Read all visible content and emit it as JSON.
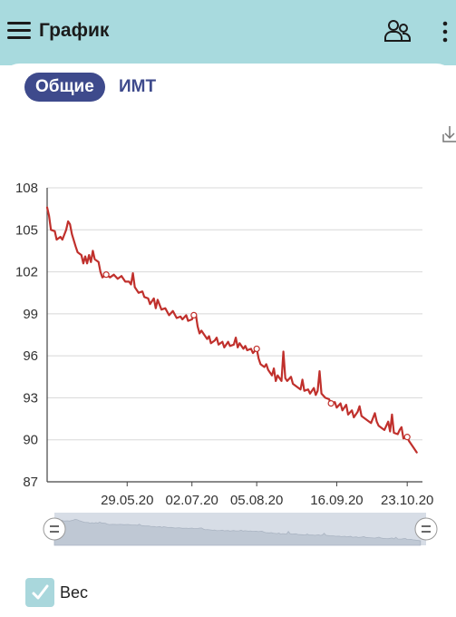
{
  "appbar": {
    "title": "График",
    "menu_icon": "hamburger-menu-icon",
    "profiles_icon": "two-users-icon",
    "more_icon": "vertical-dots-icon"
  },
  "tabs": [
    {
      "label": "Общие",
      "selected": true
    },
    {
      "label": "ИМТ",
      "selected": false
    }
  ],
  "download_icon": "download-icon",
  "colors": {
    "appbar": "#a8dade",
    "accent": "#3e4a8c",
    "series": "#c0302c",
    "checkbox": "#a9d7dc"
  },
  "chart_data": {
    "type": "line",
    "title": "",
    "xlabel": "",
    "ylabel": "",
    "grid": true,
    "ylim": [
      87,
      108
    ],
    "yticks": [
      "108",
      "105",
      "102",
      "99",
      "96",
      "93",
      "90",
      "87"
    ],
    "xticks": [
      "29.05.20",
      "02.07.20",
      "05.08.20",
      "16.09.20",
      "23.10.20"
    ],
    "xlim": [
      "2020-04-17",
      "2020-10-31"
    ],
    "series": [
      {
        "name": "Вес",
        "color": "#c0302c",
        "points": [
          [
            "2020-04-17",
            106.6
          ],
          [
            "2020-04-18",
            106.0
          ],
          [
            "2020-04-19",
            105.0
          ],
          [
            "2020-04-21",
            104.9
          ],
          [
            "2020-04-22",
            104.3
          ],
          [
            "2020-04-24",
            104.5
          ],
          [
            "2020-04-25",
            104.3
          ],
          [
            "2020-04-27",
            105.0
          ],
          [
            "2020-04-28",
            105.6
          ],
          [
            "2020-04-29",
            105.4
          ],
          [
            "2020-04-30",
            104.7
          ],
          [
            "2020-05-02",
            103.8
          ],
          [
            "2020-05-03",
            103.4
          ],
          [
            "2020-05-05",
            103.2
          ],
          [
            "2020-05-06",
            102.6
          ],
          [
            "2020-05-07",
            103.1
          ],
          [
            "2020-05-08",
            102.6
          ],
          [
            "2020-05-09",
            103.2
          ],
          [
            "2020-05-10",
            102.7
          ],
          [
            "2020-05-11",
            103.5
          ],
          [
            "2020-05-12",
            102.9
          ],
          [
            "2020-05-14",
            102.7
          ],
          [
            "2020-05-15",
            102.0
          ],
          [
            "2020-05-16",
            101.6
          ],
          [
            "2020-05-18",
            101.8
          ],
          [
            "2020-05-20",
            101.6
          ],
          [
            "2020-05-22",
            101.8
          ],
          [
            "2020-05-24",
            101.5
          ],
          [
            "2020-05-26",
            101.7
          ],
          [
            "2020-05-28",
            101.3
          ],
          [
            "2020-05-30",
            101.3
          ],
          [
            "2020-05-31",
            101.1
          ],
          [
            "2020-06-01",
            101.9
          ],
          [
            "2020-06-02",
            100.9
          ],
          [
            "2020-06-04",
            100.5
          ],
          [
            "2020-06-06",
            100.6
          ],
          [
            "2020-06-07",
            100.2
          ],
          [
            "2020-06-09",
            100.1
          ],
          [
            "2020-06-10",
            99.7
          ],
          [
            "2020-06-12",
            100.1
          ],
          [
            "2020-06-13",
            99.4
          ],
          [
            "2020-06-14",
            100.0
          ],
          [
            "2020-06-16",
            99.3
          ],
          [
            "2020-06-18",
            99.4
          ],
          [
            "2020-06-20",
            98.9
          ],
          [
            "2020-06-22",
            99.2
          ],
          [
            "2020-06-24",
            98.7
          ],
          [
            "2020-06-26",
            98.8
          ],
          [
            "2020-06-27",
            98.6
          ],
          [
            "2020-06-29",
            98.9
          ],
          [
            "2020-06-30",
            98.5
          ],
          [
            "2020-07-02",
            98.6
          ],
          [
            "2020-07-03",
            98.9
          ],
          [
            "2020-07-04",
            99.0
          ],
          [
            "2020-07-05",
            98.1
          ],
          [
            "2020-07-06",
            97.6
          ],
          [
            "2020-07-07",
            97.8
          ],
          [
            "2020-07-08",
            97.6
          ],
          [
            "2020-07-10",
            97.2
          ],
          [
            "2020-07-11",
            97.4
          ],
          [
            "2020-07-12",
            96.9
          ],
          [
            "2020-07-14",
            97.1
          ],
          [
            "2020-07-15",
            97.3
          ],
          [
            "2020-07-16",
            96.8
          ],
          [
            "2020-07-18",
            97.0
          ],
          [
            "2020-07-19",
            96.6
          ],
          [
            "2020-07-21",
            97.0
          ],
          [
            "2020-07-22",
            96.7
          ],
          [
            "2020-07-24",
            96.8
          ],
          [
            "2020-07-25",
            97.3
          ],
          [
            "2020-07-26",
            96.6
          ],
          [
            "2020-07-27",
            96.9
          ],
          [
            "2020-07-29",
            96.5
          ],
          [
            "2020-07-30",
            96.7
          ],
          [
            "2020-07-31",
            96.4
          ],
          [
            "2020-08-02",
            96.5
          ],
          [
            "2020-08-03",
            96.2
          ],
          [
            "2020-08-05",
            96.5
          ],
          [
            "2020-08-06",
            95.8
          ],
          [
            "2020-08-07",
            95.4
          ],
          [
            "2020-08-09",
            95.2
          ],
          [
            "2020-08-10",
            95.4
          ],
          [
            "2020-08-11",
            95.0
          ],
          [
            "2020-08-13",
            94.6
          ],
          [
            "2020-08-14",
            95.1
          ],
          [
            "2020-08-15",
            94.2
          ],
          [
            "2020-08-16",
            94.6
          ],
          [
            "2020-08-18",
            94.2
          ],
          [
            "2020-08-19",
            96.3
          ],
          [
            "2020-08-20",
            94.4
          ],
          [
            "2020-08-21",
            94.2
          ],
          [
            "2020-08-23",
            94.5
          ],
          [
            "2020-08-24",
            94.0
          ],
          [
            "2020-08-26",
            93.8
          ],
          [
            "2020-08-28",
            93.6
          ],
          [
            "2020-08-29",
            94.3
          ],
          [
            "2020-08-30",
            93.5
          ],
          [
            "2020-09-01",
            93.6
          ],
          [
            "2020-09-02",
            93.3
          ],
          [
            "2020-09-04",
            93.7
          ],
          [
            "2020-09-05",
            93.2
          ],
          [
            "2020-09-06",
            93.5
          ],
          [
            "2020-09-07",
            94.9
          ],
          [
            "2020-09-08",
            93.3
          ],
          [
            "2020-09-10",
            93.0
          ],
          [
            "2020-09-12",
            92.9
          ],
          [
            "2020-09-13",
            92.6
          ],
          [
            "2020-09-15",
            92.7
          ],
          [
            "2020-09-16",
            92.3
          ],
          [
            "2020-09-18",
            92.6
          ],
          [
            "2020-09-19",
            92.1
          ],
          [
            "2020-09-21",
            92.5
          ],
          [
            "2020-09-22",
            91.8
          ],
          [
            "2020-09-24",
            92.1
          ],
          [
            "2020-09-25",
            91.6
          ],
          [
            "2020-09-27",
            92.0
          ],
          [
            "2020-09-28",
            92.4
          ],
          [
            "2020-09-29",
            91.7
          ],
          [
            "2020-10-01",
            91.5
          ],
          [
            "2020-10-03",
            91.3
          ],
          [
            "2020-10-04",
            91.2
          ],
          [
            "2020-10-06",
            91.9
          ],
          [
            "2020-10-07",
            91.3
          ],
          [
            "2020-10-08",
            91.0
          ],
          [
            "2020-10-10",
            90.8
          ],
          [
            "2020-10-11",
            90.7
          ],
          [
            "2020-10-13",
            91.3
          ],
          [
            "2020-10-14",
            90.6
          ],
          [
            "2020-10-15",
            91.8
          ],
          [
            "2020-10-16",
            90.5
          ],
          [
            "2020-10-18",
            90.4
          ],
          [
            "2020-10-19",
            90.7
          ],
          [
            "2020-10-20",
            90.9
          ],
          [
            "2020-10-21",
            90.1
          ],
          [
            "2020-10-23",
            90.2
          ],
          [
            "2020-10-24",
            89.9
          ],
          [
            "2020-10-26",
            89.5
          ],
          [
            "2020-10-27",
            89.3
          ],
          [
            "2020-10-28",
            89.1
          ]
        ]
      }
    ],
    "markers": [
      [
        "2020-05-18",
        101.8
      ],
      [
        "2020-07-03",
        98.9
      ],
      [
        "2020-08-05",
        96.5
      ],
      [
        "2020-09-13",
        92.6
      ],
      [
        "2020-10-23",
        90.2
      ]
    ],
    "navigator": {
      "range_start": "2020-04-17",
      "range_end": "2020-10-31"
    }
  },
  "legend": {
    "label": "Вес",
    "checked": true
  }
}
